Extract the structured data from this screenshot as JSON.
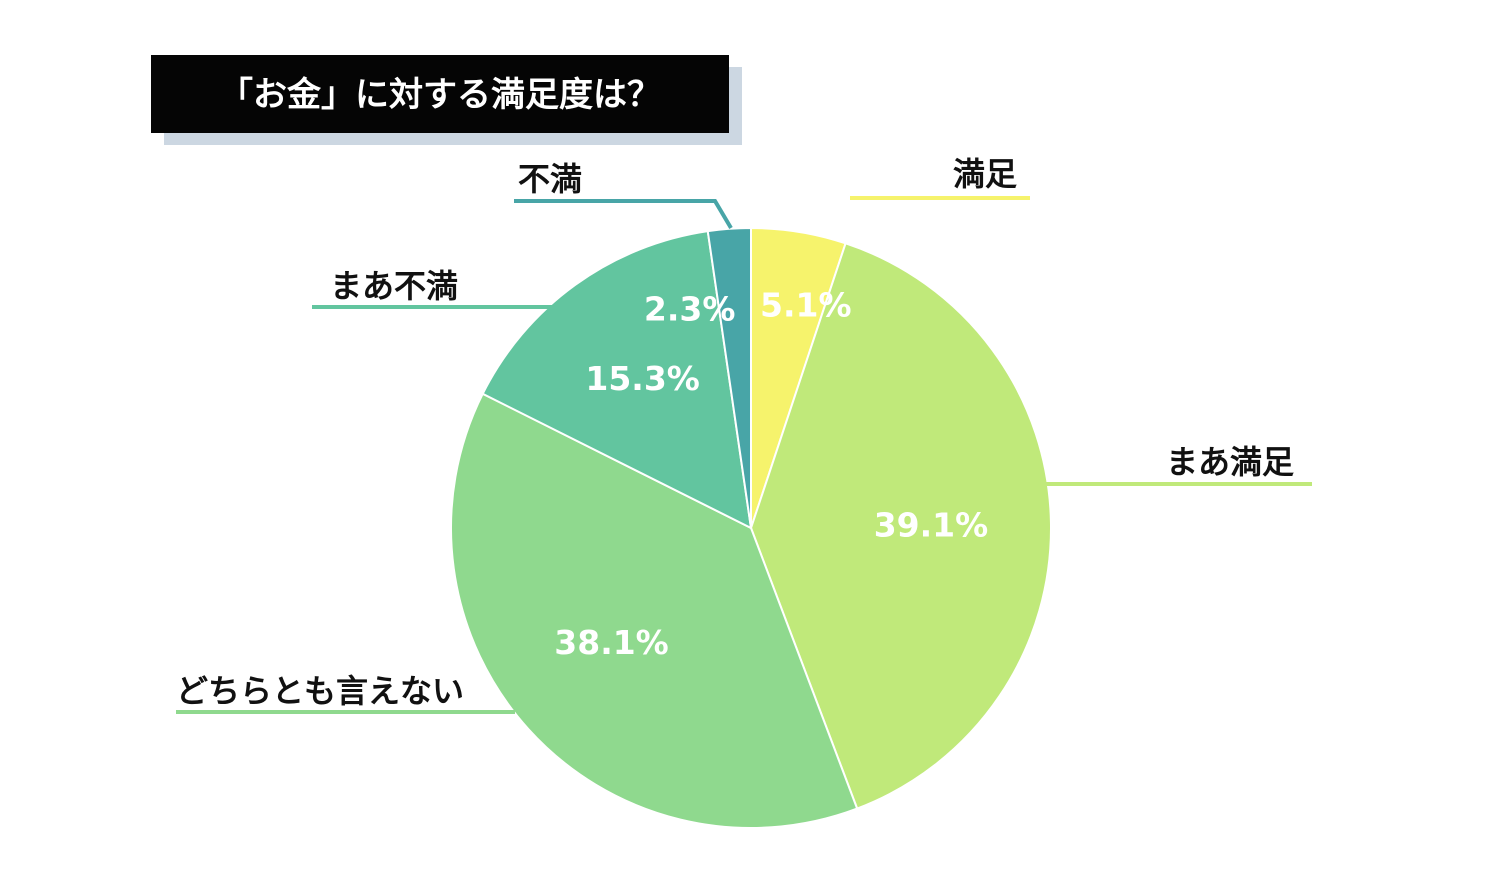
{
  "chart_data": {
    "type": "pie",
    "title": "「お金」に対する満足度は？",
    "series": [
      {
        "values": [
          5.1,
          39.1,
          38.1,
          15.3,
          2.3
        ]
      }
    ],
    "categories": [
      "満足",
      "まあ満足",
      "どちらとも言えない",
      "まあ不満",
      "不満"
    ],
    "value_labels": [
      "5.1%",
      "39.1%",
      "38.1%",
      "15.3%",
      "2.3%"
    ],
    "colors": [
      "#f6f36c",
      "#c0e97a",
      "#8fd98e",
      "#62c59f",
      "#48a5a7"
    ],
    "start": "top",
    "direction": "clockwise"
  }
}
